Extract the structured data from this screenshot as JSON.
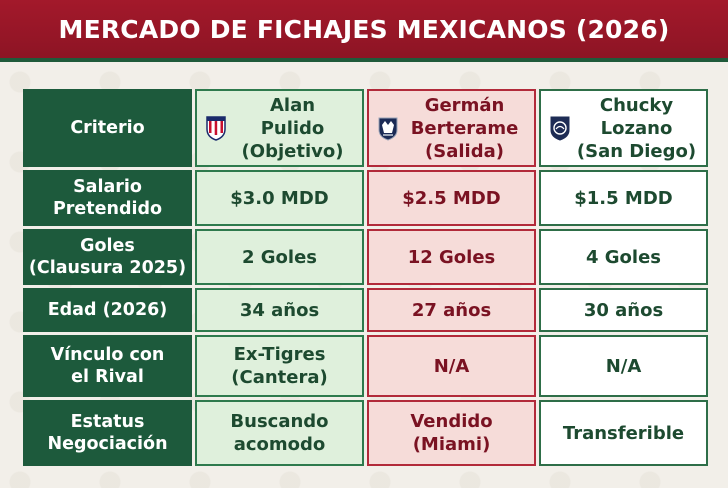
{
  "title": "MERCADO DE FICHAJES MEXICANOS (2026)",
  "header_label": "Criterio",
  "players": [
    {
      "name": "Alan\nPulido\n(Objetivo)",
      "crest_icon": "chivas-crest-icon"
    },
    {
      "name": "Germán\nBerterame\n(Salida)",
      "crest_icon": "monterrey-crest-icon"
    },
    {
      "name": "Chucky\nLozano\n(San Diego)",
      "crest_icon": "san-diego-crest-icon"
    }
  ],
  "rows": [
    {
      "label": "Salario\nPretendido",
      "values": [
        "$3.0 MDD",
        "$2.5 MDD",
        "$1.5 MDD"
      ]
    },
    {
      "label": "Goles\n(Clausura 2025)",
      "values": [
        "2 Goles",
        "12 Goles",
        "4 Goles"
      ]
    },
    {
      "label": "Edad (2026)",
      "values": [
        "34 años",
        "27 años",
        "30 años"
      ]
    },
    {
      "label": "Vínculo con\nel Rival",
      "values": [
        "Ex-Tigres\n(Cantera)",
        "N/A",
        "N/A"
      ]
    },
    {
      "label": "Estatus\nNegociación",
      "values": [
        "Buscando\nacomodo",
        "Vendido\n(Miami)",
        "Transferible"
      ]
    }
  ],
  "colors": {
    "header_red": "#a3192b",
    "label_green": "#1d5a3c",
    "col1_bg": "#dff0dc",
    "col2_bg": "#f6dcd9",
    "col3_bg": "#ffffff"
  }
}
